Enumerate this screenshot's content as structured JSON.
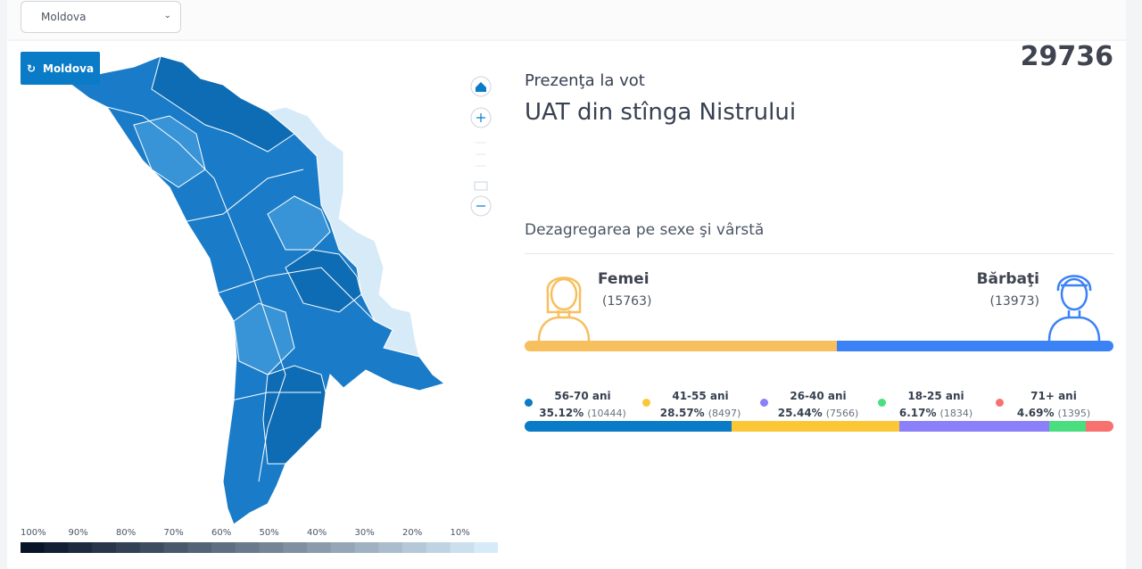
{
  "select": {
    "value": "Moldova"
  },
  "reset_button": {
    "label": "Moldova"
  },
  "total": 29736,
  "turnout": {
    "title": "Prezenţa la vot",
    "region": "UAT din stînga Nistrului"
  },
  "breakdown": {
    "title": "Dezagregarea pe sexe şi vârstă",
    "gender": [
      {
        "label": "Femei",
        "count": {
          "value": 15763,
          "label": "(15763)"
        },
        "color": "#f7bf5e"
      },
      {
        "label": "Bărbaţi",
        "count": {
          "value": 13973,
          "label": "(13973)"
        },
        "color": "#3b82f6"
      }
    ],
    "age_groups": [
      {
        "label": "56-70 ani",
        "percent": {
          "value": 35.12,
          "label": "35.12%"
        },
        "count": {
          "value": 10444,
          "label": "(10444)"
        },
        "color": "#0a7bc6"
      },
      {
        "label": "41-55 ani",
        "percent": {
          "value": 28.57,
          "label": "28.57%"
        },
        "count": {
          "value": 8497,
          "label": "(8497)"
        },
        "color": "#fcc737"
      },
      {
        "label": "26-40 ani",
        "percent": {
          "value": 25.44,
          "label": "25.44%"
        },
        "count": {
          "value": 7566,
          "label": "(7566)"
        },
        "color": "#8b80f9"
      },
      {
        "label": "18-25 ani",
        "percent": {
          "value": 6.17,
          "label": "6.17%"
        },
        "count": {
          "value": 1834,
          "label": "(1834)"
        },
        "color": "#4ade80"
      },
      {
        "label": "71+ ani",
        "percent": {
          "value": 4.69,
          "label": "4.69%"
        },
        "count": {
          "value": 1395,
          "label": "(1395)"
        },
        "color": "#f87171"
      }
    ]
  },
  "map_legend": {
    "ticks": [
      "100%",
      "90%",
      "80%",
      "70%",
      "60%",
      "50%",
      "40%",
      "30%",
      "20%",
      "10%"
    ]
  }
}
